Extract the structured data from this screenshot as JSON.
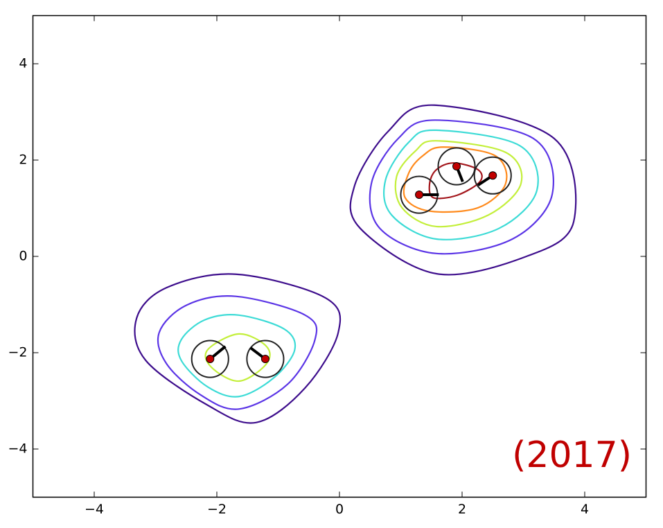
{
  "chart_data": {
    "type": "contour",
    "xlim": [
      -5,
      5
    ],
    "ylim": [
      -5,
      5
    ],
    "xticks": [
      {
        "value": -4,
        "label": "−4"
      },
      {
        "value": -2,
        "label": "−2"
      },
      0,
      2,
      4
    ],
    "yticks": [
      {
        "value": -4,
        "label": "−4"
      },
      {
        "value": -2,
        "label": "−2"
      },
      0,
      2,
      4
    ],
    "contours": [
      {
        "color": "#3d0d8c",
        "x": [
          1.55,
          3.5,
          3.82,
          3.05,
          1.58,
          0.34,
          0.24,
          0.79
        ],
        "y": [
          3.14,
          2.45,
          0.72,
          0,
          -0.36,
          0.58,
          1.44,
          2.59
        ]
      },
      {
        "color": "#5b35e6",
        "x": [
          1.56,
          3.16,
          3.47,
          2.82,
          1.58,
          0.66,
          0.52,
          0.96
        ],
        "y": [
          2.83,
          2.45,
          1.29,
          0.36,
          0.06,
          0.58,
          1.51,
          2.45
        ]
      },
      {
        "color": "#3cdbd6",
        "x": [
          1.58,
          2.94,
          3.22,
          2.6,
          1.58,
          0.85,
          0.75,
          1.13
        ],
        "y": [
          2.62,
          2.3,
          1.37,
          0.58,
          0.36,
          0.86,
          1.58,
          2.37
        ]
      },
      {
        "color": "#c3ef3a",
        "x": [
          1.58,
          2.71,
          2.96,
          2.43,
          1.58,
          1.02,
          0.93,
          1.24
        ],
        "y": [
          2.4,
          2.16,
          1.51,
          0.86,
          0.62,
          1.01,
          1.65,
          2.19
        ]
      },
      {
        "color": "#ff8a1c",
        "x": [
          1.69,
          2.54,
          2.71,
          2.26,
          1.47,
          1.07,
          1.13,
          1.36
        ],
        "y": [
          2.27,
          2.09,
          1.51,
          1.01,
          0.94,
          1.22,
          1.73,
          2.09
        ]
      },
      {
        "color": "#a3161c",
        "x": [
          1.86,
          2.26,
          2.29,
          1.92,
          1.53,
          1.47,
          1.58
        ],
        "y": [
          1.94,
          1.8,
          1.55,
          1.27,
          1.22,
          1.51,
          1.8
        ]
      },
      {
        "color": "#3d0d8c",
        "x": [
          -1.69,
          -0.23,
          -0.02,
          -0.56,
          -1.36,
          -2.15,
          -3.16,
          -3.31,
          -2.82
        ],
        "y": [
          -0.37,
          -0.86,
          -1.58,
          -2.73,
          -3.45,
          -3.09,
          -2.16,
          -1.29,
          -0.65
        ]
      },
      {
        "color": "#5b35e6",
        "x": [
          -1.69,
          -0.56,
          -0.4,
          -0.85,
          -1.64,
          -2.26,
          -2.82,
          -2.94,
          -2.49
        ],
        "y": [
          -0.83,
          -1.22,
          -1.73,
          -2.66,
          -3.17,
          -2.88,
          -2.23,
          -1.58,
          -1.01
        ]
      },
      {
        "color": "#3cdbd6",
        "x": [
          -1.64,
          -0.9,
          -0.73,
          -1.07,
          -1.64,
          -2.15,
          -2.58,
          -2.58,
          -2.2
        ],
        "y": [
          -1.22,
          -1.51,
          -1.94,
          -2.52,
          -2.91,
          -2.71,
          -2.16,
          -1.73,
          -1.32
        ]
      },
      {
        "color": "#c3ef3a",
        "x": [
          -1.64,
          -1.19,
          -1.19,
          -1.64,
          -2.09,
          -2.15
        ],
        "y": [
          -1.61,
          -1.87,
          -2.23,
          -2.59,
          -2.3,
          -1.94
        ]
      }
    ],
    "points": {
      "color": "#c00000",
      "ring_color": "#222222",
      "radius": 0.3,
      "x": [
        -2.11,
        -1.21,
        1.3,
        1.91,
        2.5
      ],
      "y": [
        -2.13,
        -2.13,
        1.28,
        1.87,
        1.68
      ]
    },
    "arrows": {
      "color": "#000000",
      "x_end": [
        -1.86,
        -1.45,
        1.62,
        2.01,
        2.26
      ],
      "y_end": [
        -1.87,
        -1.9,
        1.28,
        1.55,
        1.48
      ]
    },
    "annotation": {
      "text": "(2017)",
      "color": "#c00000"
    }
  }
}
